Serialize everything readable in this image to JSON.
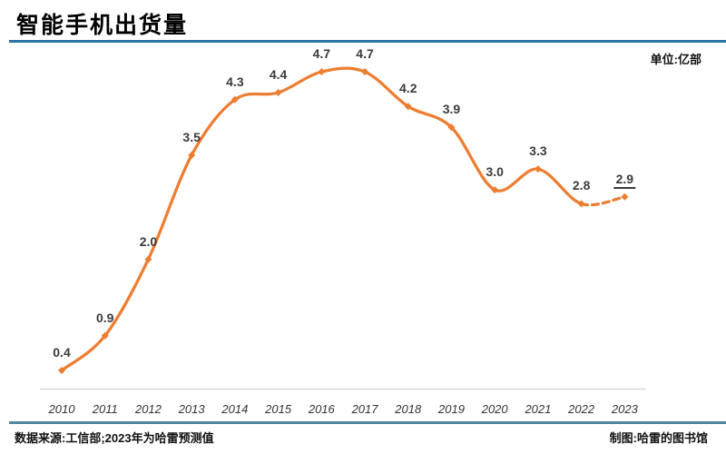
{
  "header": {
    "title": "智能手机出货量",
    "unit_label": "单位:亿部"
  },
  "footer": {
    "source": "数据来源:工信部;2023年为哈雷预测值",
    "credit": "制图:哈雷的图书馆"
  },
  "theme": {
    "title_rule_color": "#2973A8",
    "footer_rule_color": "#4E87A3",
    "line_color": "#ED7D31",
    "axis_color": "#D9D9D9",
    "data_label_color": "#3A3A3A",
    "year_label_color": "#333333"
  },
  "chart_data": {
    "type": "line",
    "title": "智能手机出货量",
    "unit": "亿部",
    "categories": [
      "2010",
      "2011",
      "2012",
      "2013",
      "2014",
      "2015",
      "2016",
      "2017",
      "2018",
      "2019",
      "2020",
      "2021",
      "2022",
      "2023"
    ],
    "values": [
      0.4,
      0.9,
      2.0,
      3.5,
      4.3,
      4.4,
      4.7,
      4.7,
      4.2,
      3.9,
      3.0,
      3.3,
      2.8,
      2.9
    ],
    "data_labels": [
      "0.4",
      "0.9",
      "2.0",
      "3.5",
      "4.3",
      "4.4",
      "4.7",
      "4.7",
      "4.2",
      "3.9",
      "3.0",
      "3.3",
      "2.8",
      "2.9"
    ],
    "forecast_start_index": 12,
    "forecast_style": "dashed",
    "forecast_value_underlined": "2.9",
    "line_color": "#ED7D31",
    "marker": "diamond",
    "grid": false,
    "legend": false,
    "y_axis_visible": false,
    "xlabel": "",
    "ylabel": "",
    "ylim": [
      0,
      5
    ]
  }
}
